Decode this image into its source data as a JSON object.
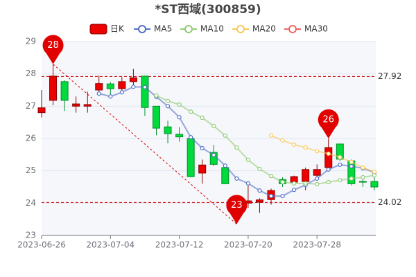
{
  "chart_data": {
    "type": "candlestick",
    "title": "*ST西域(300859)",
    "categories": [
      "2023-06-26",
      null,
      null,
      null,
      null,
      null,
      "2023-07-04",
      null,
      null,
      null,
      null,
      null,
      "2023-07-12",
      null,
      null,
      null,
      null,
      null,
      "2023-07-20",
      null,
      null,
      null,
      null,
      null,
      "2023-07-28",
      null,
      null,
      null,
      null,
      null
    ],
    "candles": {
      "name": "日K",
      "up_color": "#ec0000",
      "down_color": "#00da3c",
      "open": [
        26.8,
        27.18,
        27.76,
        27.0,
        27.0,
        27.5,
        27.69,
        27.54,
        27.76,
        27.93,
        27.0,
        26.36,
        26.13,
        26.0,
        24.93,
        25.57,
        25.1,
        24.05,
        24.0,
        24.03,
        24.11,
        24.73,
        24.65,
        24.67,
        24.86,
        25.1,
        25.83,
        25.31,
        24.67,
        24.67
      ],
      "close": [
        26.95,
        27.93,
        27.18,
        27.07,
        27.05,
        27.7,
        27.54,
        27.76,
        27.88,
        26.96,
        26.32,
        26.15,
        26.05,
        24.82,
        25.18,
        25.2,
        24.6,
        24.0,
        24.07,
        24.1,
        24.39,
        24.6,
        24.82,
        25.04,
        25.04,
        25.72,
        25.36,
        24.6,
        24.65,
        24.5
      ],
      "low": [
        26.65,
        27.03,
        26.85,
        26.8,
        26.8,
        27.35,
        27.35,
        27.4,
        27.6,
        26.7,
        26.1,
        25.85,
        25.9,
        24.8,
        24.6,
        25.15,
        24.6,
        23.35,
        23.85,
        23.7,
        23.95,
        24.5,
        24.55,
        24.4,
        24.75,
        25.05,
        25.3,
        24.55,
        24.5,
        24.4
      ],
      "high": [
        27.5,
        28.3,
        27.8,
        27.3,
        27.45,
        27.95,
        27.75,
        27.9,
        28.15,
        27.95,
        27.0,
        26.55,
        26.35,
        26.05,
        25.35,
        25.8,
        25.15,
        24.2,
        24.6,
        24.15,
        24.45,
        24.8,
        24.85,
        25.1,
        25.2,
        26.0,
        25.83,
        25.35,
        24.75,
        24.8
      ]
    },
    "series": [
      {
        "name": "MA5",
        "color": "#5470c6",
        "values": [
          null,
          null,
          null,
          null,
          null,
          27.39,
          27.3,
          27.43,
          27.6,
          27.59,
          27.29,
          27.0,
          26.66,
          26.04,
          25.7,
          25.49,
          25.16,
          24.76,
          24.61,
          24.39,
          24.22,
          24.22,
          24.41,
          24.56,
          24.76,
          25.04,
          25.19,
          25.14,
          25.08,
          24.95
        ]
      },
      {
        "name": "MA10",
        "color": "#91cc75",
        "values": [
          null,
          null,
          null,
          null,
          null,
          null,
          null,
          null,
          null,
          null,
          27.33,
          27.16,
          27.05,
          26.83,
          26.64,
          26.39,
          26.09,
          25.72,
          25.34,
          25.06,
          24.84,
          24.65,
          24.61,
          24.61,
          24.59,
          24.65,
          24.71,
          24.76,
          24.8,
          24.86
        ]
      },
      {
        "name": "MA20",
        "color": "#fac858",
        "values": [
          null,
          null,
          null,
          null,
          null,
          null,
          null,
          null,
          null,
          null,
          null,
          null,
          null,
          null,
          null,
          null,
          null,
          null,
          null,
          null,
          26.09,
          25.94,
          25.81,
          25.72,
          25.61,
          25.53,
          25.42,
          25.27,
          25.1,
          24.97
        ]
      },
      {
        "name": "MA30",
        "color": "#ee6666",
        "values": [
          null,
          null,
          null,
          null,
          null,
          null,
          null,
          null,
          null,
          null,
          null,
          null,
          null,
          null,
          null,
          null,
          null,
          null,
          null,
          null,
          null,
          null,
          null,
          null,
          null,
          null,
          null,
          null,
          null,
          null
        ]
      }
    ],
    "ref_lines": [
      27.92,
      24.02
    ],
    "markers": [
      {
        "label": "28",
        "value": 28.3,
        "category_index": 1
      },
      {
        "label": "23",
        "value": 23.35,
        "category_index": 17
      },
      {
        "label": "26",
        "value": 26.0,
        "category_index": 25
      }
    ],
    "ylim": [
      23,
      29
    ],
    "yticks": [
      23,
      24,
      25,
      26,
      27,
      28,
      29
    ],
    "grid": true
  }
}
